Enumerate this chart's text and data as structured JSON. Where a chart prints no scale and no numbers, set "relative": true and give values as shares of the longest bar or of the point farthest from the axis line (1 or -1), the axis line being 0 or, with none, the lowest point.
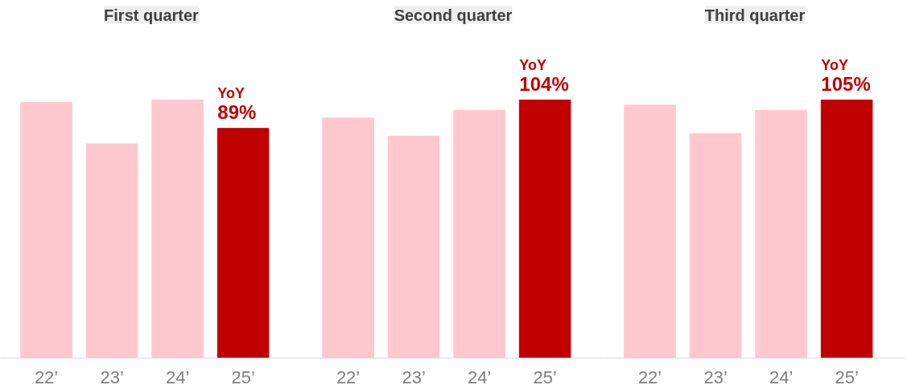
{
  "chart_data": [
    {
      "type": "bar",
      "title": "First quarter",
      "relative": true,
      "categories": [
        "22’",
        "23’",
        "24’",
        "25’"
      ],
      "values": [
        0.99,
        0.83,
        1,
        0.89
      ],
      "colors": [
        "#ffc7ce",
        "#ffc7ce",
        "#ffc7ce",
        "#c00000"
      ],
      "annotations": [
        {
          "text": "YoY\n89%",
          "x": "25’",
          "y": 0.89
        }
      ],
      "grid": false
    },
    {
      "type": "bar",
      "title": "Second quarter",
      "relative": true,
      "categories": [
        "22’",
        "23’",
        "24’",
        "25’"
      ],
      "values": [
        0.93,
        0.86,
        0.96,
        1
      ],
      "colors": [
        "#ffc7ce",
        "#ffc7ce",
        "#ffc7ce",
        "#c00000"
      ],
      "annotations": [
        {
          "text": "YoY\n104%",
          "x": "25’",
          "y": 1
        }
      ],
      "grid": false
    },
    {
      "type": "bar",
      "title": "Third quarter",
      "relative": true,
      "categories": [
        "22’",
        "23’",
        "24’",
        "25’"
      ],
      "values": [
        0.98,
        0.87,
        0.96,
        1
      ],
      "colors": [
        "#ffc7ce",
        "#ffc7ce",
        "#ffc7ce",
        "#c00000"
      ],
      "annotations": [
        {
          "text": "YoY\n105%",
          "x": "25’",
          "y": 1
        }
      ],
      "grid": false
    }
  ]
}
